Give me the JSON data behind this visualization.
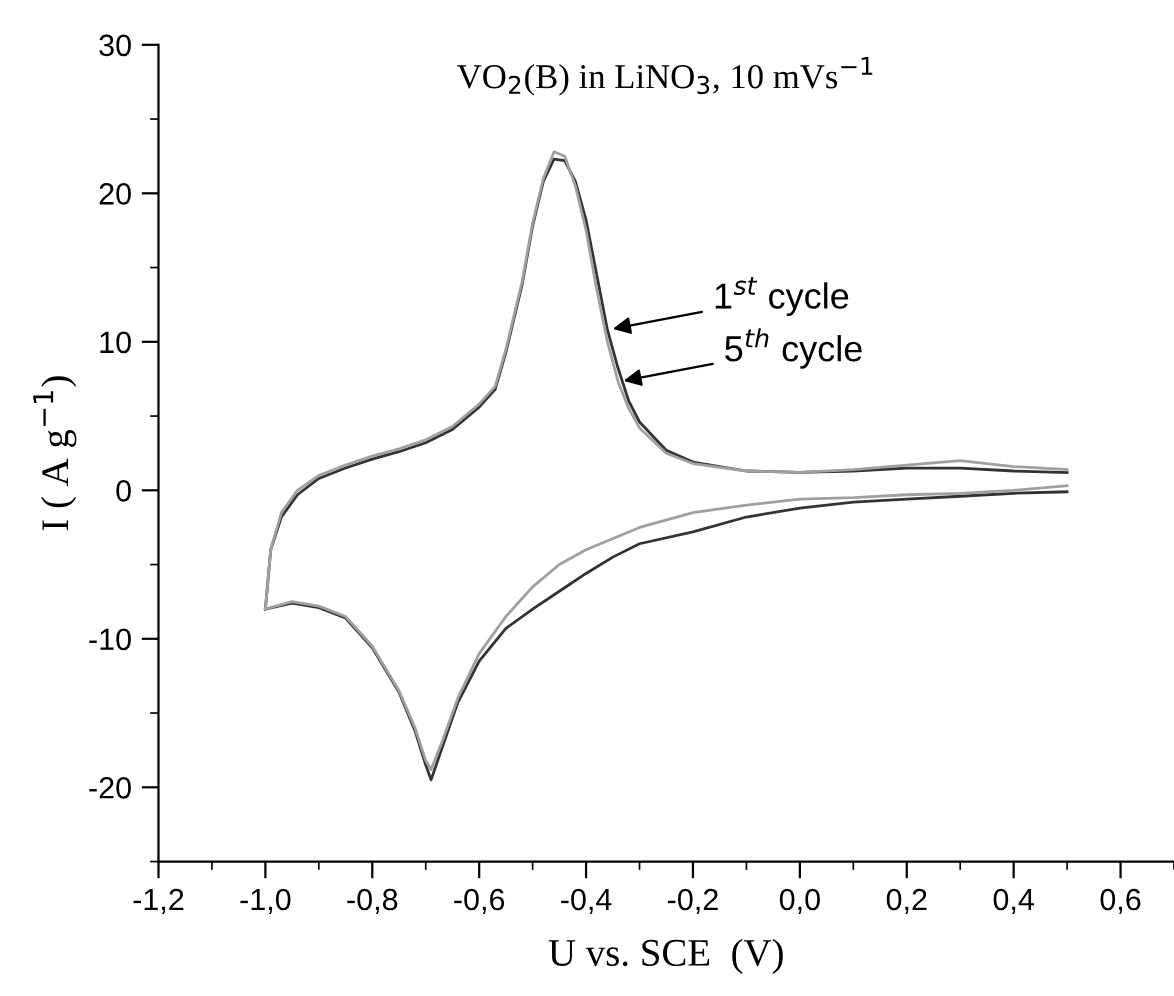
{
  "chart_data": {
    "type": "line",
    "title": "VO$_{2}$(B) in LiNO$_{3}$, 10 mVs$^{−1}$",
    "xlabel": "U vs. SCE  (V)",
    "ylabel": "I ( A g$^{−1}$)",
    "xlim": [
      -1.2,
      0.7
    ],
    "xticks": [
      {
        "value": -1.2,
        "label": "-1,2"
      },
      {
        "value": -1.0,
        "label": "-1,0"
      },
      {
        "value": -0.8,
        "label": "-0,8"
      },
      {
        "value": -0.6,
        "label": "-0,6"
      },
      {
        "value": -0.4,
        "label": "-0,4"
      },
      {
        "value": -0.2,
        "label": "-0,2"
      },
      {
        "value": 0.0,
        "label": "0,0"
      },
      {
        "value": 0.2,
        "label": "0,2"
      },
      {
        "value": 0.4,
        "label": "0,4"
      },
      {
        "value": 0.6,
        "label": "0,6"
      }
    ],
    "ylim": [
      -25,
      30
    ],
    "yticks": [
      -20,
      -10,
      0,
      10,
      20,
      30
    ],
    "marker": "none",
    "line_style": "solid",
    "series": [
      {
        "color": "#333333",
        "x": [
          -1.0,
          -0.99,
          -0.97,
          -0.94,
          -0.9,
          -0.85,
          -0.8,
          -0.75,
          -0.7,
          -0.65,
          -0.6,
          -0.57,
          -0.55,
          -0.52,
          -0.5,
          -0.48,
          -0.46,
          -0.44,
          -0.42,
          -0.4,
          -0.38,
          -0.36,
          -0.34,
          -0.32,
          -0.3,
          -0.25,
          -0.2,
          -0.1,
          0.0,
          0.1,
          0.2,
          0.3,
          0.4,
          0.5
        ],
        "values": [
          -8,
          -4,
          -1.8,
          -0.3,
          0.8,
          1.5,
          2.1,
          2.6,
          3.2,
          4.1,
          5.6,
          6.8,
          9.3,
          13.8,
          17.8,
          20.8,
          22.3,
          22.2,
          20.8,
          18.2,
          14.5,
          10.8,
          8.2,
          6.0,
          4.6,
          2.7,
          1.9,
          1.3,
          1.2,
          1.3,
          1.5,
          1.5,
          1.3,
          1.2
        ]
      },
      {
        "color": "#333333",
        "x": [
          -1.0,
          -0.95,
          -0.9,
          -0.85,
          -0.8,
          -0.75,
          -0.72,
          -0.7,
          -0.69,
          -0.67,
          -0.64,
          -0.6,
          -0.55,
          -0.5,
          -0.45,
          -0.4,
          -0.35,
          -0.3,
          -0.2,
          -0.1,
          0.0,
          0.1,
          0.2,
          0.3,
          0.4,
          0.5
        ],
        "values": [
          -8,
          -7.6,
          -7.9,
          -8.6,
          -10.6,
          -13.6,
          -16.2,
          -18.5,
          -19.5,
          -17.4,
          -14.3,
          -11.5,
          -9.3,
          -8.0,
          -6.8,
          -5.6,
          -4.5,
          -3.6,
          -2.8,
          -1.8,
          -1.2,
          -0.8,
          -0.6,
          -0.4,
          -0.2,
          -0.1
        ]
      },
      {
        "color": "#a0a0a0",
        "x": [
          -1.0,
          -0.99,
          -0.97,
          -0.94,
          -0.9,
          -0.85,
          -0.8,
          -0.75,
          -0.7,
          -0.65,
          -0.6,
          -0.57,
          -0.55,
          -0.52,
          -0.5,
          -0.48,
          -0.46,
          -0.44,
          -0.42,
          -0.4,
          -0.38,
          -0.36,
          -0.34,
          -0.32,
          -0.3,
          -0.25,
          -0.2,
          -0.1,
          0.0,
          0.1,
          0.2,
          0.3,
          0.4,
          0.5
        ],
        "values": [
          -8,
          -4,
          -1.5,
          0,
          1,
          1.7,
          2.3,
          2.8,
          3.4,
          4.3,
          5.8,
          7,
          9.5,
          14,
          18,
          21,
          22.8,
          22.5,
          20.5,
          17.5,
          13.5,
          10,
          7.3,
          5.5,
          4.2,
          2.5,
          1.8,
          1.3,
          1.2,
          1.4,
          1.7,
          2.0,
          1.6,
          1.4
        ]
      },
      {
        "color": "#a0a0a0",
        "x": [
          -1.0,
          -0.95,
          -0.9,
          -0.85,
          -0.8,
          -0.75,
          -0.72,
          -0.7,
          -0.69,
          -0.67,
          -0.64,
          -0.6,
          -0.55,
          -0.5,
          -0.45,
          -0.4,
          -0.3,
          -0.2,
          -0.1,
          0.0,
          0.1,
          0.2,
          0.3,
          0.4,
          0.5
        ],
        "values": [
          -8,
          -7.5,
          -7.8,
          -8.5,
          -10.5,
          -13.5,
          -16,
          -18.2,
          -18.8,
          -17,
          -14,
          -11,
          -8.5,
          -6.5,
          -5,
          -4,
          -2.5,
          -1.5,
          -1,
          -0.6,
          -0.5,
          -0.3,
          -0.2,
          0,
          0.3
        ]
      }
    ],
    "annotations": [
      {
        "text": "1$^{st}$ cycle",
        "x": -0.36,
        "y": 10.8
      },
      {
        "text": "5$^{th}$ cycle",
        "x": -0.34,
        "y": 7.3
      }
    ]
  }
}
